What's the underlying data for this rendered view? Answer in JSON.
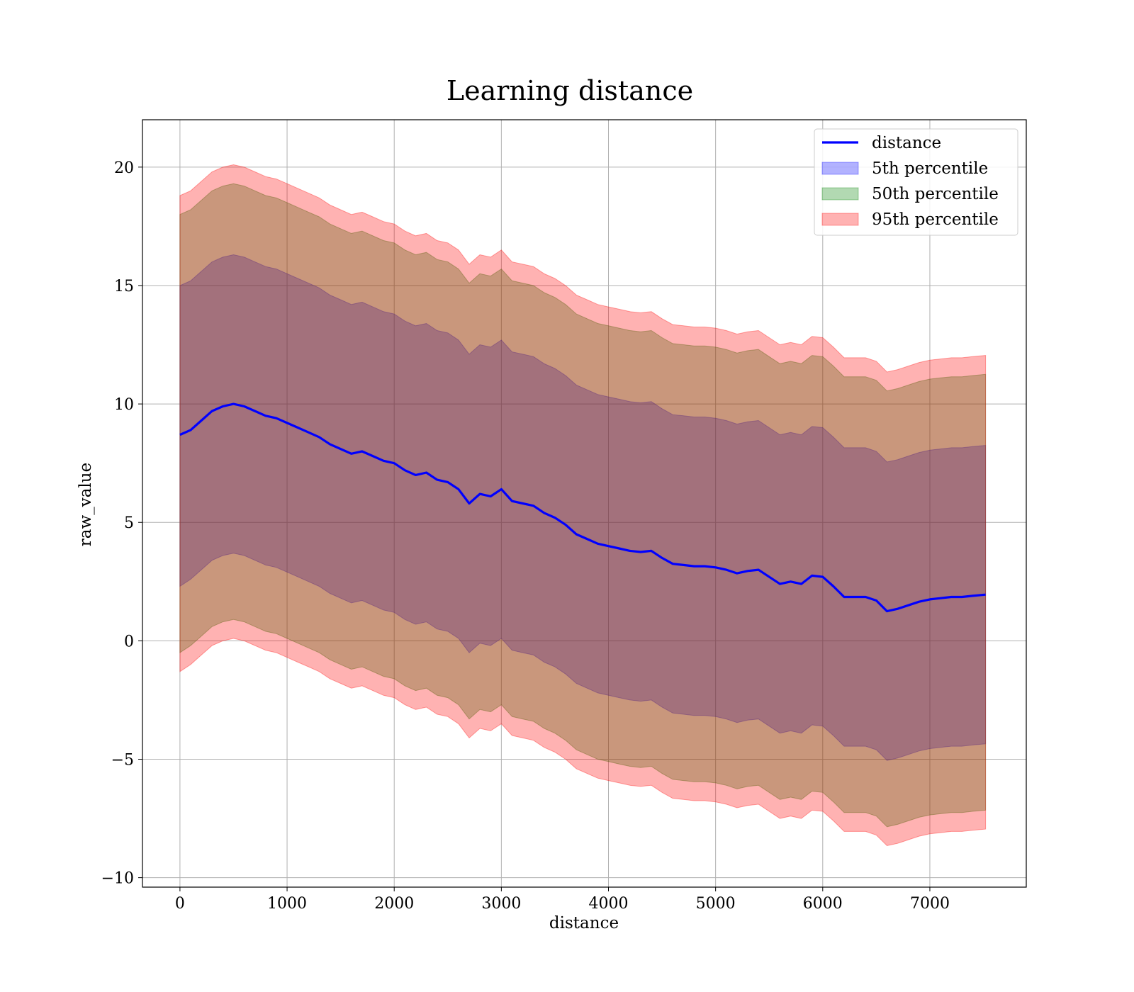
{
  "chart_data": {
    "type": "line",
    "title": "Learning distance",
    "xlabel": "distance",
    "ylabel": "raw_value",
    "xlim": [
      -350,
      7900
    ],
    "ylim": [
      -10.4,
      22
    ],
    "xticks": [
      0,
      1000,
      2000,
      3000,
      4000,
      5000,
      6000,
      7000
    ],
    "yticks": [
      -10,
      -5,
      0,
      5,
      10,
      15,
      20
    ],
    "xtick_labels": [
      "0",
      "1000",
      "2000",
      "3000",
      "4000",
      "5000",
      "6000",
      "7000"
    ],
    "ytick_labels": [
      "−10",
      "−5",
      "0",
      "5",
      "10",
      "15",
      "20"
    ],
    "grid": true,
    "legend_position": "top-right",
    "legend": [
      "distance",
      "5th percentile",
      "50th percentile",
      "95th percentile"
    ],
    "x": [
      0,
      100,
      200,
      300,
      400,
      500,
      600,
      700,
      800,
      900,
      1000,
      1100,
      1200,
      1300,
      1400,
      1500,
      1600,
      1700,
      1800,
      1900,
      2000,
      2100,
      2200,
      2300,
      2400,
      2500,
      2600,
      2700,
      2800,
      2900,
      3000,
      3100,
      3200,
      3300,
      3400,
      3500,
      3600,
      3700,
      3800,
      3900,
      4000,
      4100,
      4200,
      4300,
      4400,
      4500,
      4600,
      4700,
      4800,
      4900,
      5000,
      5100,
      5200,
      5300,
      5400,
      5500,
      5600,
      5700,
      5800,
      5900,
      6000,
      6100,
      6200,
      6300,
      6400,
      6500,
      6600,
      6700,
      6800,
      6900,
      7000,
      7100,
      7200,
      7300,
      7400,
      7520
    ],
    "series": [
      {
        "name": "distance",
        "kind": "line",
        "color": "#0000ff",
        "values": [
          8.7,
          8.9,
          9.3,
          9.7,
          9.9,
          10.0,
          9.9,
          9.7,
          9.5,
          9.4,
          9.2,
          9.0,
          8.8,
          8.6,
          8.3,
          8.1,
          7.9,
          8.0,
          7.8,
          7.6,
          7.5,
          7.2,
          7.0,
          7.1,
          6.8,
          6.7,
          6.4,
          5.8,
          6.2,
          6.1,
          6.4,
          5.9,
          5.8,
          5.7,
          5.4,
          5.2,
          4.9,
          4.5,
          4.3,
          4.1,
          4.0,
          3.9,
          3.8,
          3.75,
          3.8,
          3.5,
          3.25,
          3.2,
          3.15,
          3.15,
          3.1,
          3.0,
          2.85,
          2.95,
          3.0,
          2.7,
          2.4,
          2.5,
          2.4,
          2.75,
          2.7,
          2.3,
          1.85,
          1.85,
          1.85,
          1.7,
          1.25,
          1.35,
          1.5,
          1.65,
          1.75,
          1.8,
          1.85,
          1.85,
          1.9,
          1.95
        ]
      },
      {
        "name": "5th percentile",
        "kind": "band",
        "color": "#0000ff",
        "opacity": 0.3,
        "lower": [
          2.3,
          2.6,
          3.0,
          3.4,
          3.6,
          3.7,
          3.6,
          3.4,
          3.2,
          3.1,
          2.9,
          2.7,
          2.5,
          2.3,
          2.0,
          1.8,
          1.6,
          1.7,
          1.5,
          1.3,
          1.2,
          0.9,
          0.7,
          0.8,
          0.5,
          0.4,
          0.1,
          -0.5,
          -0.1,
          -0.2,
          0.1,
          -0.4,
          -0.5,
          -0.6,
          -0.9,
          -1.1,
          -1.4,
          -1.8,
          -2.0,
          -2.2,
          -2.3,
          -2.4,
          -2.5,
          -2.55,
          -2.5,
          -2.8,
          -3.05,
          -3.1,
          -3.15,
          -3.15,
          -3.2,
          -3.3,
          -3.45,
          -3.35,
          -3.3,
          -3.6,
          -3.9,
          -3.8,
          -3.9,
          -3.55,
          -3.6,
          -4.0,
          -4.45,
          -4.45,
          -4.45,
          -4.6,
          -5.05,
          -4.95,
          -4.8,
          -4.65,
          -4.55,
          -4.5,
          -4.45,
          -4.45,
          -4.4,
          -4.35
        ],
        "upper": [
          15.0,
          15.2,
          15.6,
          16.0,
          16.2,
          16.3,
          16.2,
          16.0,
          15.8,
          15.7,
          15.5,
          15.3,
          15.1,
          14.9,
          14.6,
          14.4,
          14.2,
          14.3,
          14.1,
          13.9,
          13.8,
          13.5,
          13.3,
          13.4,
          13.1,
          13.0,
          12.7,
          12.1,
          12.5,
          12.4,
          12.7,
          12.2,
          12.1,
          12.0,
          11.7,
          11.5,
          11.2,
          10.8,
          10.6,
          10.4,
          10.3,
          10.2,
          10.1,
          10.05,
          10.1,
          9.8,
          9.55,
          9.5,
          9.45,
          9.45,
          9.4,
          9.3,
          9.15,
          9.25,
          9.3,
          9.0,
          8.7,
          8.8,
          8.7,
          9.05,
          9.0,
          8.6,
          8.15,
          8.15,
          8.15,
          8.0,
          7.55,
          7.65,
          7.8,
          7.95,
          8.05,
          8.1,
          8.15,
          8.15,
          8.2,
          8.25
        ]
      },
      {
        "name": "50th percentile",
        "kind": "band",
        "color": "#008000",
        "opacity": 0.3,
        "lower": [
          -0.5,
          -0.2,
          0.2,
          0.6,
          0.8,
          0.9,
          0.8,
          0.6,
          0.4,
          0.3,
          0.1,
          -0.1,
          -0.3,
          -0.5,
          -0.8,
          -1.0,
          -1.2,
          -1.1,
          -1.3,
          -1.5,
          -1.6,
          -1.9,
          -2.1,
          -2.0,
          -2.3,
          -2.4,
          -2.7,
          -3.3,
          -2.9,
          -3.0,
          -2.7,
          -3.2,
          -3.3,
          -3.4,
          -3.7,
          -3.9,
          -4.2,
          -4.6,
          -4.8,
          -5.0,
          -5.1,
          -5.2,
          -5.3,
          -5.35,
          -5.3,
          -5.6,
          -5.85,
          -5.9,
          -5.95,
          -5.95,
          -6.0,
          -6.1,
          -6.25,
          -6.15,
          -6.1,
          -6.4,
          -6.7,
          -6.6,
          -6.7,
          -6.35,
          -6.4,
          -6.8,
          -7.25,
          -7.25,
          -7.25,
          -7.4,
          -7.85,
          -7.75,
          -7.6,
          -7.45,
          -7.35,
          -7.3,
          -7.25,
          -7.25,
          -7.2,
          -7.15
        ],
        "upper": [
          18.0,
          18.2,
          18.6,
          19.0,
          19.2,
          19.3,
          19.2,
          19.0,
          18.8,
          18.7,
          18.5,
          18.3,
          18.1,
          17.9,
          17.6,
          17.4,
          17.2,
          17.3,
          17.1,
          16.9,
          16.8,
          16.5,
          16.3,
          16.4,
          16.1,
          16.0,
          15.7,
          15.1,
          15.5,
          15.4,
          15.7,
          15.2,
          15.1,
          15.0,
          14.7,
          14.5,
          14.2,
          13.8,
          13.6,
          13.4,
          13.3,
          13.2,
          13.1,
          13.05,
          13.1,
          12.8,
          12.55,
          12.5,
          12.45,
          12.45,
          12.4,
          12.3,
          12.15,
          12.25,
          12.3,
          12.0,
          11.7,
          11.8,
          11.7,
          12.05,
          12.0,
          11.6,
          11.15,
          11.15,
          11.15,
          11.0,
          10.55,
          10.65,
          10.8,
          10.95,
          11.05,
          11.1,
          11.15,
          11.15,
          11.2,
          11.25
        ]
      },
      {
        "name": "95th percentile",
        "kind": "band",
        "color": "#ff0000",
        "opacity": 0.3,
        "lower": [
          -1.3,
          -1.0,
          -0.6,
          -0.2,
          0.0,
          0.1,
          0.0,
          -0.2,
          -0.4,
          -0.5,
          -0.7,
          -0.9,
          -1.1,
          -1.3,
          -1.6,
          -1.8,
          -2.0,
          -1.9,
          -2.1,
          -2.3,
          -2.4,
          -2.7,
          -2.9,
          -2.8,
          -3.1,
          -3.2,
          -3.5,
          -4.1,
          -3.7,
          -3.8,
          -3.5,
          -4.0,
          -4.1,
          -4.2,
          -4.5,
          -4.7,
          -5.0,
          -5.4,
          -5.6,
          -5.8,
          -5.9,
          -6.0,
          -6.1,
          -6.15,
          -6.1,
          -6.4,
          -6.65,
          -6.7,
          -6.75,
          -6.75,
          -6.8,
          -6.9,
          -7.05,
          -6.95,
          -6.9,
          -7.2,
          -7.5,
          -7.4,
          -7.5,
          -7.15,
          -7.2,
          -7.6,
          -8.05,
          -8.05,
          -8.05,
          -8.2,
          -8.65,
          -8.55,
          -8.4,
          -8.25,
          -8.15,
          -8.1,
          -8.05,
          -8.05,
          -8.0,
          -7.95
        ],
        "upper": [
          18.8,
          19.0,
          19.4,
          19.8,
          20.0,
          20.1,
          20.0,
          19.8,
          19.6,
          19.5,
          19.3,
          19.1,
          18.9,
          18.7,
          18.4,
          18.2,
          18.0,
          18.1,
          17.9,
          17.7,
          17.6,
          17.3,
          17.1,
          17.2,
          16.9,
          16.8,
          16.5,
          15.9,
          16.3,
          16.2,
          16.5,
          16.0,
          15.9,
          15.8,
          15.5,
          15.3,
          15.0,
          14.6,
          14.4,
          14.2,
          14.1,
          14.0,
          13.9,
          13.85,
          13.9,
          13.6,
          13.35,
          13.3,
          13.25,
          13.25,
          13.2,
          13.1,
          12.95,
          13.05,
          13.1,
          12.8,
          12.5,
          12.6,
          12.5,
          12.85,
          12.8,
          12.4,
          11.95,
          11.95,
          11.95,
          11.8,
          11.35,
          11.45,
          11.6,
          11.75,
          11.85,
          11.9,
          11.95,
          11.95,
          12.0,
          12.05
        ]
      }
    ]
  }
}
